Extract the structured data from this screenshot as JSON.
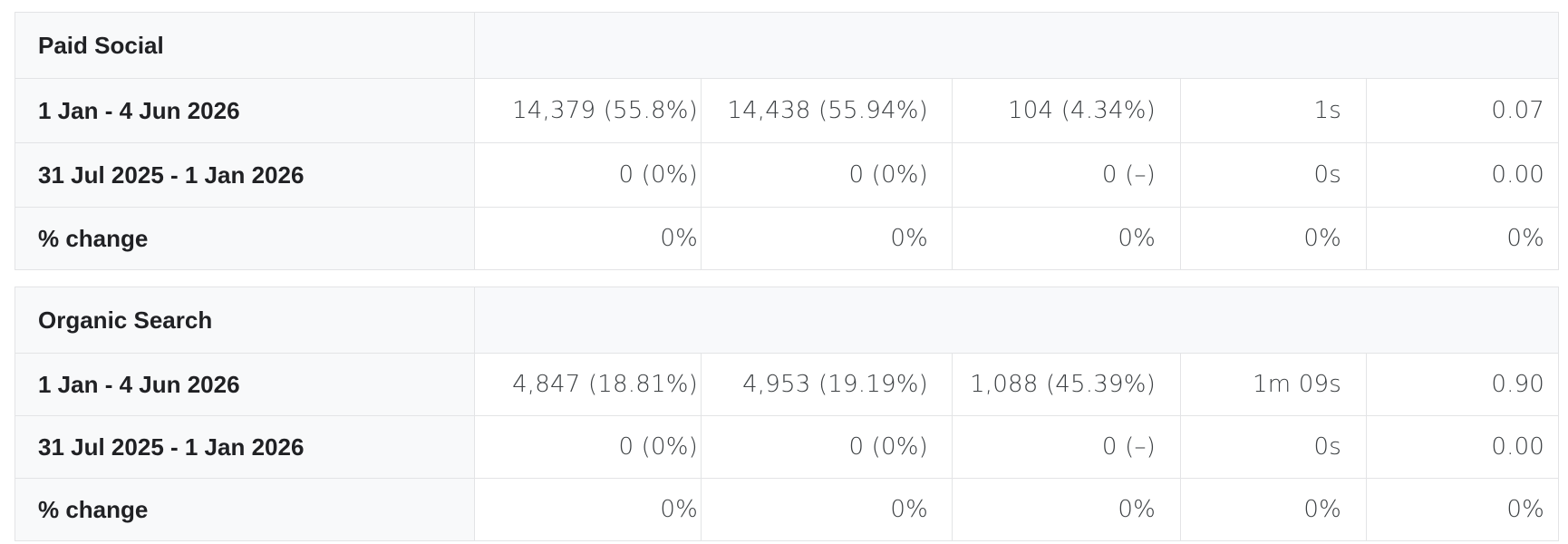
{
  "groups": [
    {
      "title": "Paid Social",
      "rows": [
        {
          "label": "1 Jan - 4 Jun 2026",
          "values": [
            "14,379 (55.8%)",
            "14,438 (55.94%)",
            "104 (4.34%)",
            "1s",
            "0.07"
          ]
        },
        {
          "label": "31 Jul 2025 - 1 Jan 2026",
          "values": [
            "0 (0%)",
            "0 (0%)",
            "0 (–)",
            "0s",
            "0.00"
          ]
        },
        {
          "label": "% change",
          "values": [
            "0%",
            "0%",
            "0%",
            "0%",
            "0%"
          ]
        }
      ]
    },
    {
      "title": "Organic Search",
      "rows": [
        {
          "label": "1 Jan - 4 Jun 2026",
          "values": [
            "4,847 (18.81%)",
            "4,953 (19.19%)",
            "1,088 (45.39%)",
            "1m 09s",
            "0.90"
          ]
        },
        {
          "label": "31 Jul 2025 - 1 Jan 2026",
          "values": [
            "0 (0%)",
            "0 (0%)",
            "0 (–)",
            "0s",
            "0.00"
          ]
        },
        {
          "label": "% change",
          "values": [
            "0%",
            "0%",
            "0%",
            "0%",
            "0%"
          ]
        }
      ]
    }
  ]
}
